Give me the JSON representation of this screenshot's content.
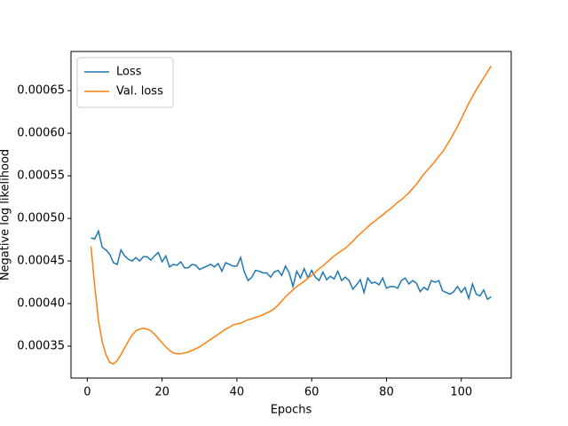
{
  "chart_data": {
    "type": "line",
    "xlabel": "Epochs",
    "ylabel": "Negative log likelihood",
    "x": [
      1,
      2,
      3,
      4,
      5,
      6,
      7,
      8,
      9,
      10,
      11,
      12,
      13,
      14,
      15,
      16,
      17,
      18,
      19,
      20,
      21,
      22,
      23,
      24,
      25,
      26,
      27,
      28,
      29,
      30,
      31,
      32,
      33,
      34,
      35,
      36,
      37,
      38,
      39,
      40,
      41,
      42,
      43,
      44,
      45,
      46,
      47,
      48,
      49,
      50,
      51,
      52,
      53,
      54,
      55,
      56,
      57,
      58,
      59,
      60,
      61,
      62,
      63,
      64,
      65,
      66,
      67,
      68,
      69,
      70,
      71,
      72,
      73,
      74,
      75,
      76,
      77,
      78,
      79,
      80,
      81,
      82,
      83,
      84,
      85,
      86,
      87,
      88,
      89,
      90,
      91,
      92,
      93,
      94,
      95,
      96,
      97,
      98,
      99,
      100,
      101,
      102,
      103,
      104,
      105,
      106,
      107,
      108
    ],
    "series": [
      {
        "name": "Loss",
        "color": "#1f77b4",
        "values": [
          0.000477,
          0.000476,
          0.000485,
          0.000466,
          0.000463,
          0.000458,
          0.000448,
          0.000446,
          0.000463,
          0.000456,
          0.000452,
          0.00045,
          0.000454,
          0.00045,
          0.000455,
          0.000455,
          0.000451,
          0.000456,
          0.00046,
          0.000449,
          0.000456,
          0.000443,
          0.000446,
          0.000445,
          0.000449,
          0.000442,
          0.000442,
          0.000446,
          0.000445,
          0.00044,
          0.000442,
          0.000444,
          0.000446,
          0.000443,
          0.000447,
          0.000438,
          0.000448,
          0.000446,
          0.000444,
          0.000444,
          0.000454,
          0.000437,
          0.000427,
          0.000431,
          0.000439,
          0.000438,
          0.000436,
          0.000436,
          0.000431,
          0.000437,
          0.000439,
          0.000433,
          0.000444,
          0.000436,
          0.00042,
          0.000438,
          0.00043,
          0.000441,
          0.00043,
          0.000439,
          0.000431,
          0.000427,
          0.000437,
          0.000428,
          0.000432,
          0.000429,
          0.000438,
          0.000427,
          0.000431,
          0.000427,
          0.000417,
          0.000422,
          0.000428,
          0.000413,
          0.00043,
          0.000424,
          0.000425,
          0.000422,
          0.00043,
          0.000418,
          0.00042,
          0.00042,
          0.000418,
          0.000427,
          0.00043,
          0.000423,
          0.000427,
          0.000424,
          0.000414,
          0.000419,
          0.000416,
          0.000427,
          0.000425,
          0.000427,
          0.000415,
          0.000413,
          0.000411,
          0.000414,
          0.00042,
          0.000413,
          0.000419,
          0.000406,
          0.000423,
          0.000411,
          0.000409,
          0.000416,
          0.000405,
          0.000408
        ]
      },
      {
        "name": "Val. loss",
        "color": "#ff7f0e",
        "values": [
          0.000467,
          0.00042,
          0.00038,
          0.000355,
          0.00034,
          0.000331,
          0.000329,
          0.000333,
          0.00034,
          0.000348,
          0.000356,
          0.000363,
          0.000368,
          0.00037,
          0.000371,
          0.00037,
          0.000368,
          0.000364,
          0.000359,
          0.000354,
          0.000349,
          0.000345,
          0.000342,
          0.000341,
          0.000341,
          0.000342,
          0.000343,
          0.000345,
          0.000347,
          0.000349,
          0.000352,
          0.000355,
          0.000358,
          0.000361,
          0.000364,
          0.000367,
          0.00037,
          0.000372,
          0.000375,
          0.000376,
          0.000377,
          0.000379,
          0.000381,
          0.000382,
          0.000384,
          0.000385,
          0.000387,
          0.000389,
          0.000391,
          0.000394,
          0.000398,
          0.000403,
          0.000408,
          0.000412,
          0.000416,
          0.00042,
          0.000423,
          0.000426,
          0.00043,
          0.000433,
          0.000437,
          0.000441,
          0.000444,
          0.000448,
          0.000452,
          0.000456,
          0.000459,
          0.000462,
          0.000465,
          0.000469,
          0.000473,
          0.000478,
          0.000482,
          0.000486,
          0.00049,
          0.000494,
          0.000497,
          0.000501,
          0.000504,
          0.000508,
          0.000511,
          0.000515,
          0.000519,
          0.000522,
          0.000526,
          0.00053,
          0.000535,
          0.00054,
          0.000546,
          0.000552,
          0.000557,
          0.000562,
          0.000567,
          0.000573,
          0.000578,
          0.000585,
          0.000592,
          0.0006,
          0.000608,
          0.000617,
          0.000626,
          0.000635,
          0.000643,
          0.000651,
          0.000658,
          0.000665,
          0.000672,
          0.000679
        ]
      }
    ],
    "xlim": [
      -4.35,
      113.35
    ],
    "xticks": [
      0,
      20,
      40,
      60,
      80,
      100
    ],
    "ylim": [
      0.0003125,
      0.000696
    ],
    "yticks": [
      0.00035,
      {
        "value": 0.0004,
        "label": "0.00040"
      },
      0.00045,
      {
        "value": 0.0005,
        "label": "0.00050"
      },
      0.00055,
      {
        "value": 0.0006,
        "label": "0.00060"
      },
      0.00065
    ],
    "legend": "upper left",
    "grid": false
  }
}
